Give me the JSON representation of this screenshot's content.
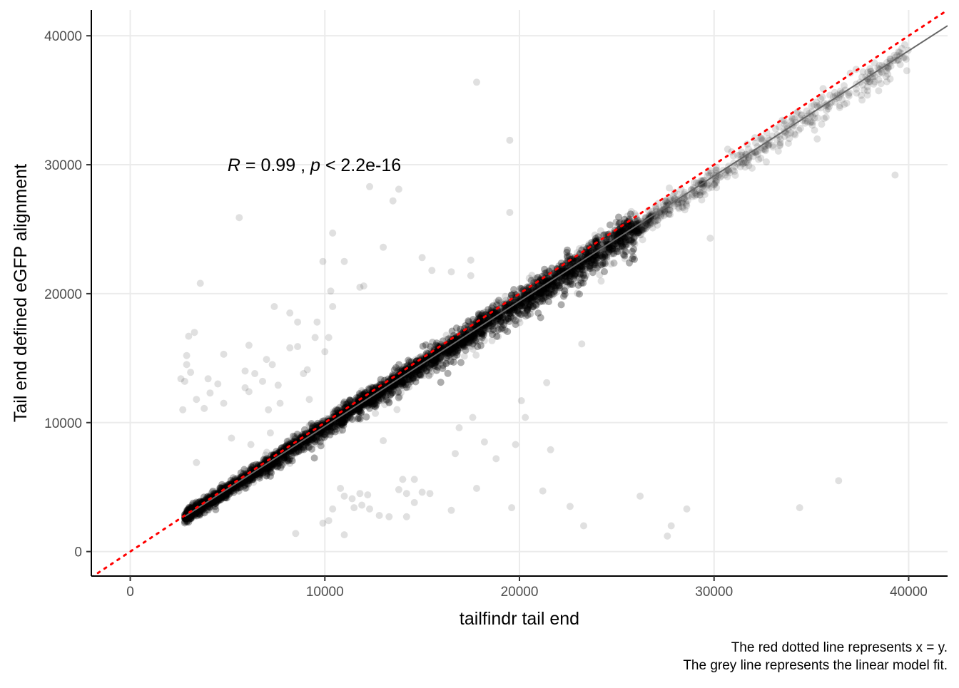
{
  "colors": {
    "points": "#000000",
    "identity_line": "#ff0000",
    "fit_line": "#666666",
    "grid": "#ebebeb",
    "axis": "#000000",
    "background": "#ffffff"
  },
  "chart_data": {
    "type": "scatter",
    "xlabel": "tailfindr tail end",
    "ylabel": "Tail end defined eGFP alignment",
    "xlim": [
      -2000,
      42000
    ],
    "ylim": [
      -1900,
      42000
    ],
    "x_ticks": [
      0,
      10000,
      20000,
      30000,
      40000
    ],
    "y_ticks": [
      0,
      10000,
      20000,
      30000,
      40000
    ],
    "grid": true,
    "point_alpha": 0.12,
    "annotation": {
      "r_symbol": "R",
      "r_text": " = 0.99 , ",
      "p_symbol": "p",
      "p_text": " < 2.2e-16",
      "x": 5000,
      "y": 30000
    },
    "identity_line": {
      "slope": 1,
      "intercept": 0,
      "style": "dotted"
    },
    "fit_line": {
      "slope": 0.971,
      "intercept": 0
    },
    "caption": [
      "The red dotted line represents x = y.",
      "The grey line represents the linear model fit."
    ],
    "dense_band": {
      "x_start": 2800,
      "x_end": 26000,
      "count": 8000
    },
    "outlier_points": [
      [
        17800,
        36400
      ],
      [
        19500,
        31900
      ],
      [
        5600,
        25900
      ],
      [
        12300,
        28300
      ],
      [
        13500,
        27200
      ],
      [
        13800,
        28100
      ],
      [
        13000,
        23600
      ],
      [
        19500,
        26300
      ],
      [
        10400,
        24700
      ],
      [
        9900,
        22500
      ],
      [
        15000,
        22800
      ],
      [
        11000,
        22500
      ],
      [
        17500,
        22600
      ],
      [
        17500,
        21400
      ],
      [
        16500,
        21700
      ],
      [
        15500,
        21800
      ],
      [
        11800,
        20500
      ],
      [
        12000,
        20600
      ],
      [
        10300,
        20200
      ],
      [
        3600,
        20800
      ],
      [
        7400,
        19000
      ],
      [
        8200,
        18500
      ],
      [
        8600,
        17800
      ],
      [
        6100,
        16000
      ],
      [
        3000,
        16700
      ],
      [
        3300,
        17000
      ],
      [
        2900,
        15200
      ],
      [
        2900,
        14500
      ],
      [
        3100,
        13900
      ],
      [
        2800,
        13200
      ],
      [
        2700,
        11000
      ],
      [
        3400,
        11800
      ],
      [
        4000,
        13400
      ],
      [
        4500,
        13000
      ],
      [
        4100,
        12300
      ],
      [
        4800,
        11500
      ],
      [
        5900,
        14000
      ],
      [
        6400,
        13800
      ],
      [
        6800,
        13200
      ],
      [
        7000,
        14900
      ],
      [
        7300,
        14500
      ],
      [
        7600,
        12900
      ],
      [
        7100,
        11000
      ],
      [
        8200,
        15800
      ],
      [
        8900,
        13800
      ],
      [
        9100,
        14100
      ],
      [
        8600,
        15900
      ],
      [
        9500,
        16600
      ],
      [
        9600,
        17800
      ],
      [
        10200,
        16600
      ],
      [
        10400,
        19000
      ],
      [
        10000,
        15500
      ],
      [
        6100,
        12400
      ],
      [
        7700,
        11500
      ],
      [
        9200,
        11800
      ],
      [
        4800,
        15300
      ],
      [
        5900,
        12700
      ],
      [
        3800,
        11100
      ],
      [
        2600,
        13400
      ],
      [
        5200,
        8800
      ],
      [
        6200,
        8300
      ],
      [
        7200,
        9200
      ],
      [
        3400,
        6900
      ],
      [
        8500,
        1400
      ],
      [
        9900,
        2200
      ],
      [
        10200,
        2400
      ],
      [
        11000,
        1300
      ],
      [
        11500,
        3400
      ],
      [
        11900,
        3600
      ],
      [
        11800,
        4500
      ],
      [
        12300,
        3300
      ],
      [
        12800,
        2800
      ],
      [
        13300,
        2700
      ],
      [
        13800,
        4800
      ],
      [
        14000,
        5600
      ],
      [
        14200,
        4500
      ],
      [
        14600,
        3800
      ],
      [
        15000,
        4600
      ],
      [
        15400,
        4500
      ],
      [
        14200,
        2700
      ],
      [
        10800,
        4900
      ],
      [
        10400,
        3300
      ],
      [
        11000,
        4300
      ],
      [
        11400,
        4100
      ],
      [
        12200,
        4400
      ],
      [
        14600,
        5600
      ],
      [
        16500,
        3200
      ],
      [
        17800,
        4900
      ],
      [
        19600,
        3400
      ],
      [
        21200,
        4700
      ],
      [
        22600,
        3500
      ],
      [
        23300,
        2000
      ],
      [
        26200,
        4300
      ],
      [
        27600,
        1200
      ],
      [
        27800,
        2000
      ],
      [
        28600,
        3300
      ],
      [
        34400,
        3400
      ],
      [
        36400,
        5500
      ],
      [
        21600,
        7900
      ],
      [
        20300,
        10400
      ],
      [
        21400,
        13100
      ],
      [
        23200,
        16100
      ],
      [
        19800,
        8300
      ],
      [
        20100,
        11700
      ],
      [
        17600,
        10400
      ],
      [
        18800,
        7200
      ],
      [
        18200,
        8500
      ],
      [
        16700,
        7600
      ],
      [
        16900,
        9600
      ],
      [
        13000,
        8600
      ],
      [
        39300,
        29200
      ],
      [
        35300,
        32000
      ],
      [
        31400,
        30200
      ],
      [
        32400,
        31300
      ],
      [
        30700,
        31200
      ],
      [
        29800,
        24300
      ],
      [
        27900,
        27600
      ],
      [
        28500,
        26500
      ],
      [
        27700,
        28200
      ],
      [
        29500,
        28800
      ],
      [
        26600,
        25700
      ],
      [
        25400,
        23400
      ],
      [
        23900,
        21900
      ],
      [
        25200,
        24000
      ],
      [
        26700,
        25900
      ],
      [
        24700,
        22300
      ],
      [
        23200,
        21200
      ],
      [
        22100,
        20800
      ],
      [
        21300,
        19400
      ],
      [
        30900,
        31000
      ],
      [
        33400,
        31700
      ],
      [
        35600,
        35900
      ],
      [
        36500,
        35400
      ],
      [
        37600,
        36800
      ],
      [
        38500,
        37700
      ],
      [
        39800,
        39300
      ],
      [
        35800,
        34700
      ],
      [
        34700,
        33400
      ],
      [
        32700,
        32500
      ],
      [
        31700,
        31600
      ],
      [
        30100,
        29600
      ],
      [
        29100,
        28600
      ],
      [
        28300,
        28100
      ],
      [
        27500,
        27200
      ],
      [
        37000,
        37100
      ],
      [
        37300,
        37400
      ],
      [
        36200,
        35600
      ],
      [
        34300,
        34100
      ],
      [
        33600,
        33400
      ],
      [
        32100,
        32100
      ]
    ]
  }
}
